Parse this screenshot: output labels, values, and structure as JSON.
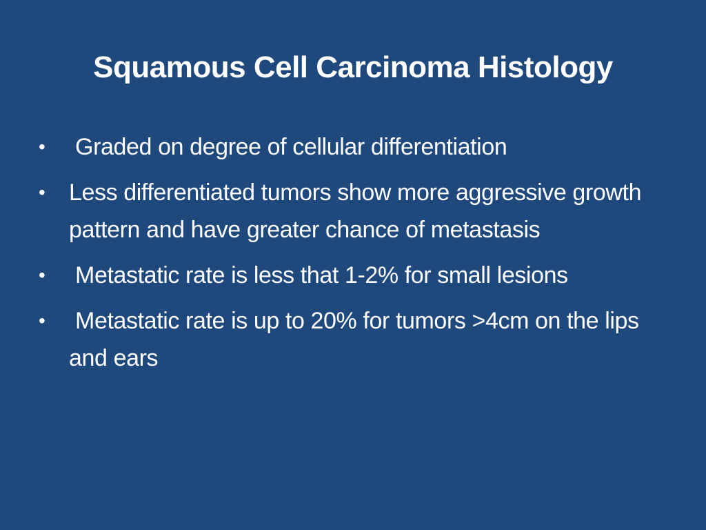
{
  "slide": {
    "title": "Squamous Cell Carcinoma Histology",
    "bullet_glyph": "•",
    "bullets": [
      " Graded on degree of cellular differentiation",
      "Less differentiated tumors show more aggressive growth pattern and have greater chance of metastasis",
      " Metastatic rate is less that 1-2% for small lesions",
      " Metastatic rate is up to 20% for tumors >4cm on the lips and ears"
    ]
  },
  "colors": {
    "background": "#1f487c",
    "text": "#ffffff"
  }
}
